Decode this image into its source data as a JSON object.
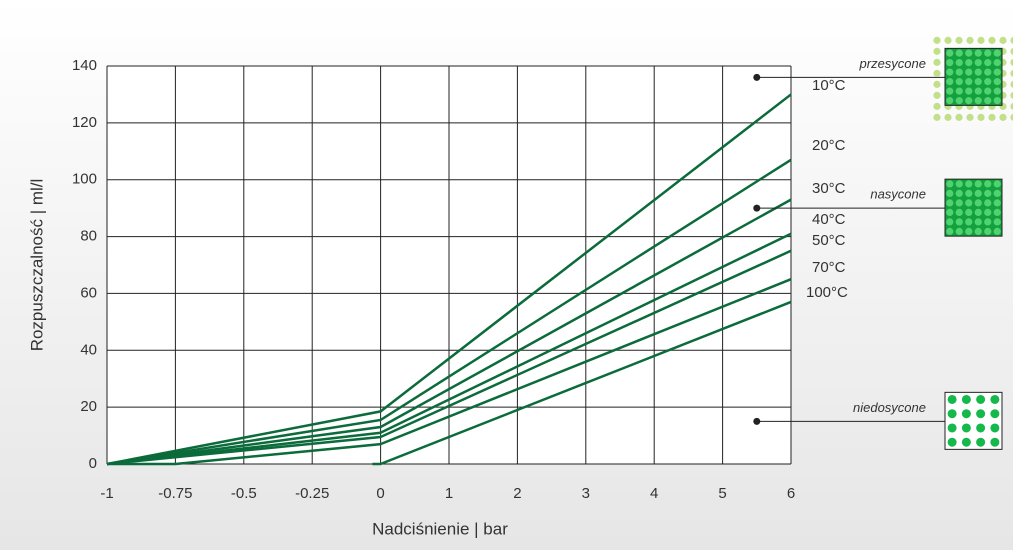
{
  "chart_data": {
    "type": "line",
    "x_label": "Nadciśnienie | bar",
    "y_label": "Rozpuszczalność | ml/l",
    "xlim": [
      -1,
      6
    ],
    "xticks": [
      -1,
      -0.75,
      -0.5,
      -0.25,
      0,
      1,
      2,
      3,
      4,
      5,
      6
    ],
    "ylim": [
      0,
      140
    ],
    "yticks": [
      0,
      20,
      40,
      60,
      80,
      100,
      120,
      140
    ],
    "grid": true,
    "series": [
      {
        "name": "10°C",
        "color": "#0b6b3a",
        "x": [
          -1,
          0,
          6
        ],
        "values": [
          0,
          18.5,
          130
        ]
      },
      {
        "name": "20°C",
        "color": "#0b6b3a",
        "x": [
          -1,
          0,
          6
        ],
        "values": [
          0,
          15.5,
          107
        ]
      },
      {
        "name": "30°C",
        "color": "#0b6b3a",
        "x": [
          -1,
          0,
          6
        ],
        "values": [
          0,
          13,
          93
        ]
      },
      {
        "name": "40°C",
        "color": "#0b6b3a",
        "x": [
          -1,
          0,
          6
        ],
        "values": [
          0,
          11,
          81
        ]
      },
      {
        "name": "50°C",
        "color": "#0b6b3a",
        "x": [
          -1,
          0,
          6
        ],
        "values": [
          0,
          9.5,
          75
        ]
      },
      {
        "name": "70°C",
        "color": "#0b6b3a",
        "x": [
          -1,
          -0.75,
          0,
          6
        ],
        "values": [
          0,
          0,
          7,
          65
        ]
      },
      {
        "name": "100°C",
        "color": "#0b6b3a",
        "x": [
          -0.03,
          0,
          6
        ],
        "values": [
          0,
          0,
          57
        ]
      }
    ],
    "annotations": [
      {
        "text": "przesycone",
        "y": 136
      },
      {
        "text": "nasycone",
        "y": 90
      },
      {
        "text": "niedosycone",
        "y": 15
      }
    ],
    "annotation_x": 5.5
  }
}
